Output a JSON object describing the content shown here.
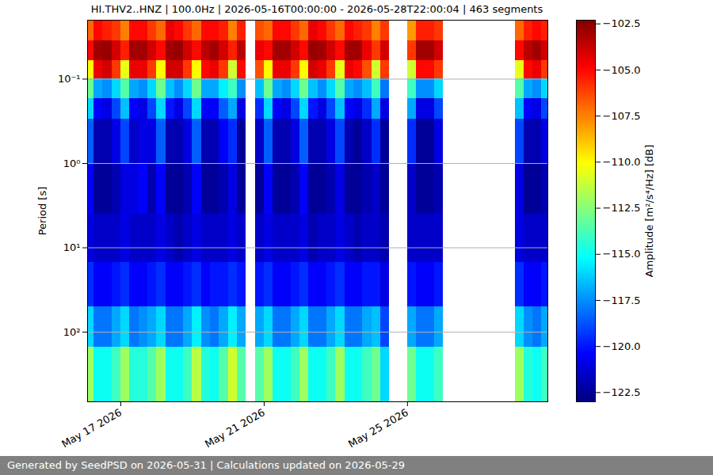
{
  "chart_data": {
    "type": "heatmap",
    "title": "HI.THV2..HNZ | 100.0Hz | 2026-05-16T00:00:00 - 2026-05-28T22:00:04 | 463 segments",
    "footer": "Generated by SeedPSD on 2026-05-31 | Calculations updated on 2026-05-29",
    "y_label": "Period [s]",
    "log": "y",
    "grid": true,
    "xlim": [
      "2026-05-16T01:43:00",
      "2026-05-28T22:00:04"
    ],
    "xticks": [
      {
        "value": "2026-05-17T00:00:00",
        "label": "May 17 2026"
      },
      {
        "value": "2026-05-21T00:00:00",
        "label": "May 21 2026"
      },
      {
        "value": "2026-05-25T00:00:00",
        "label": "May 25 2026"
      }
    ],
    "ylim": [
      0.02,
      670
    ],
    "yticks": [
      {
        "value": 0.1,
        "label": "10⁻¹"
      },
      {
        "value": 1,
        "label": "10⁰"
      },
      {
        "value": 10,
        "label": "10¹"
      },
      {
        "value": 100,
        "label": "10²"
      }
    ],
    "x_bins": [
      "2026-05-16T00:00:00",
      "2026-05-16T06:00:00",
      "2026-05-16T12:00:00",
      "2026-05-16T18:00:00",
      "2026-05-17T00:00:00",
      "2026-05-17T06:00:00",
      "2026-05-17T12:00:00",
      "2026-05-17T18:00:00",
      "2026-05-18T00:00:00",
      "2026-05-18T06:00:00",
      "2026-05-18T12:00:00",
      "2026-05-18T18:00:00",
      "2026-05-19T00:00:00",
      "2026-05-19T06:00:00",
      "2026-05-19T12:00:00",
      "2026-05-19T18:00:00",
      "2026-05-20T00:00:00",
      "2026-05-20T06:00:00",
      "2026-05-20T12:00:00",
      "2026-05-20T18:00:00",
      "2026-05-21T00:00:00",
      "2026-05-21T06:00:00",
      "2026-05-21T12:00:00",
      "2026-05-21T18:00:00",
      "2026-05-22T00:00:00",
      "2026-05-22T06:00:00",
      "2026-05-22T12:00:00",
      "2026-05-22T18:00:00",
      "2026-05-23T00:00:00",
      "2026-05-23T06:00:00",
      "2026-05-23T12:00:00",
      "2026-05-23T18:00:00",
      "2026-05-24T00:00:00",
      "2026-05-24T06:00:00",
      "2026-05-24T12:00:00",
      "2026-05-24T18:00:00",
      "2026-05-25T00:00:00",
      "2026-05-25T06:00:00",
      "2026-05-25T12:00:00",
      "2026-05-25T18:00:00",
      "2026-05-26T00:00:00",
      "2026-05-26T06:00:00",
      "2026-05-26T12:00:00",
      "2026-05-26T18:00:00",
      "2026-05-27T00:00:00",
      "2026-05-27T06:00:00",
      "2026-05-27T12:00:00",
      "2026-05-27T18:00:00",
      "2026-05-28T00:00:00",
      "2026-05-28T06:00:00",
      "2026-05-28T12:00:00",
      "2026-05-28T18:00:00",
      "2026-05-29T00:00:00"
    ],
    "y_bins": [
      0.02,
      0.035,
      0.06,
      0.1,
      0.17,
      0.3,
      1,
      4,
      15,
      50,
      150,
      670
    ],
    "values": [
      [
        -107,
        -105,
        -105.5,
        -106,
        -107.5,
        -105,
        -105,
        -106,
        -107,
        -104.5,
        -105,
        -106,
        -107,
        -105,
        -105,
        -105.5,
        -107.5,
        -105.5,
        null,
        -106.5,
        -107,
        -105,
        -105,
        -106,
        -107,
        -104.5,
        -105,
        -106,
        -107,
        -105,
        -105.5,
        -106,
        -107.5,
        -106,
        null,
        null,
        -108,
        -105.5,
        -105.5,
        -106,
        null,
        null,
        null,
        null,
        null,
        null,
        null,
        null,
        -107,
        -105.5,
        -105,
        -105.5
      ],
      [
        -105,
        -103,
        -102.8,
        -104,
        -105.5,
        -103,
        -103,
        -104,
        -105,
        -103,
        -102.8,
        -104,
        -105,
        -103.5,
        -103,
        -104,
        -105.5,
        -103.5,
        null,
        -104.5,
        -105,
        -103,
        -103,
        -104,
        -105,
        -102.8,
        -103,
        -104,
        -105,
        -103,
        -103,
        -104.5,
        -106,
        -104,
        null,
        null,
        -106,
        -103,
        -103,
        -104,
        null,
        null,
        null,
        null,
        null,
        null,
        null,
        null,
        -105,
        -103.5,
        -103,
        -104
      ],
      [
        -110,
        -104.5,
        -104,
        -106,
        -110.5,
        -104.5,
        -104.5,
        -106,
        -110,
        -104,
        -104,
        -106,
        -110,
        -105,
        -104.5,
        -106,
        -111,
        -105,
        null,
        -106.5,
        -110,
        -104.5,
        -104.5,
        -106,
        -110,
        -104,
        -104.5,
        -106,
        -110.5,
        -104.5,
        -105,
        -106.5,
        -111,
        -106,
        null,
        null,
        -111,
        -105,
        -105,
        -106,
        null,
        null,
        null,
        null,
        null,
        null,
        null,
        null,
        -110.5,
        -105,
        -104.5,
        -106
      ],
      [
        -113,
        -117,
        -117.5,
        -116,
        -113.5,
        -117,
        -117.5,
        -116,
        -113,
        -116.5,
        -117.5,
        -116,
        -113,
        -117,
        -117,
        -115.5,
        -114,
        -117.5,
        null,
        -116.5,
        -113,
        -117,
        -117.5,
        -116,
        -113,
        -116.5,
        -117.5,
        -116,
        -113.5,
        -117,
        -117.5,
        -116.5,
        -114,
        -118,
        null,
        null,
        -114,
        -117.5,
        -117.5,
        -116,
        null,
        null,
        null,
        null,
        null,
        null,
        null,
        null,
        -113.5,
        -117,
        -117.5,
        -116
      ],
      [
        -116,
        -120.5,
        -121,
        -119,
        -116.5,
        -120.5,
        -121,
        -119,
        -116,
        -120,
        -121,
        -119,
        -116,
        -120.5,
        -120.5,
        -118.5,
        -117,
        -121,
        null,
        -119.5,
        -116,
        -120.5,
        -121,
        -119,
        -116,
        -120,
        -121,
        -119,
        -116.5,
        -120.5,
        -121,
        -119.5,
        -117,
        -121,
        null,
        null,
        -117,
        -121,
        -121,
        -119,
        null,
        null,
        null,
        null,
        null,
        null,
        null,
        null,
        -116.5,
        -120.5,
        -121,
        -119
      ],
      [
        -118.5,
        -122,
        -122,
        -121,
        -119,
        -121.5,
        -121,
        -121,
        -118.5,
        -122,
        -122,
        -121,
        -118.5,
        -122,
        -122,
        -120.5,
        -119.5,
        -122.5,
        null,
        -121.5,
        -118.5,
        -122,
        -122,
        -121,
        -118.5,
        -122,
        -122,
        -121,
        -119,
        -122,
        -122.5,
        -121.5,
        -119.5,
        -122.5,
        null,
        null,
        -119.5,
        -122.5,
        -122.5,
        -121,
        null,
        null,
        null,
        null,
        null,
        null,
        null,
        null,
        -119,
        -122,
        -122,
        -121
      ],
      [
        -120.5,
        -122.5,
        -122.5,
        -122,
        -121,
        -121,
        -120.5,
        -122,
        -120.5,
        -122.5,
        -122.5,
        -122,
        -120.5,
        -122.5,
        -122.5,
        -122,
        -121,
        -122.5,
        null,
        -122.5,
        -120.5,
        -122.5,
        -122.5,
        -122,
        -120.5,
        -122.5,
        -122.5,
        -122,
        -121,
        -122.5,
        -122.5,
        -122,
        -121.5,
        -122.5,
        null,
        null,
        -121.5,
        -122.5,
        -122.5,
        -122,
        null,
        null,
        null,
        null,
        null,
        null,
        null,
        null,
        -121,
        -122.5,
        -122.5,
        -122
      ],
      [
        -121,
        -121.5,
        -121.5,
        -121.5,
        -121,
        -121.5,
        -121.5,
        -121.5,
        -121,
        -121.5,
        -122,
        -121.5,
        -121,
        -121.5,
        -121.5,
        -121.5,
        -121,
        -121.5,
        null,
        -121.5,
        -121,
        -121.5,
        -121.5,
        -121.5,
        -121,
        -122,
        -121.5,
        -121.5,
        -121,
        -121.5,
        -122,
        -121.5,
        -121.5,
        -122,
        null,
        null,
        -121.5,
        -121.5,
        -121.5,
        -121.5,
        null,
        null,
        null,
        null,
        null,
        null,
        null,
        null,
        -121,
        -121.5,
        -121.5,
        -121.5
      ],
      [
        -119.5,
        -120.5,
        -120.5,
        -120,
        -119.5,
        -120.5,
        -120.5,
        -120,
        -119.5,
        -120.5,
        -120.5,
        -120,
        -119.5,
        -120.5,
        -120,
        -120,
        -119.5,
        -120,
        null,
        -120,
        -119.5,
        -120.5,
        -120.5,
        -120,
        -119.5,
        -120.5,
        -120.5,
        -120,
        -119.5,
        -120.5,
        -120.5,
        -120,
        -120,
        -121,
        null,
        null,
        -120,
        -120.5,
        -120.5,
        -120,
        null,
        null,
        null,
        null,
        null,
        null,
        null,
        null,
        -119.5,
        -120.5,
        -120.5,
        -120
      ],
      [
        -116,
        -118,
        -118,
        -117,
        -116,
        -118,
        -117.5,
        -117,
        -116,
        -118,
        -118,
        -117,
        -115.5,
        -117.5,
        -118,
        -117,
        -115.5,
        -117,
        null,
        -117,
        -116,
        -118,
        -118,
        -117,
        -116,
        -118,
        -118,
        -117,
        -116,
        -118,
        -118,
        -117,
        -116.5,
        -119,
        null,
        null,
        -117,
        -118,
        -118,
        -117,
        null,
        null,
        null,
        null,
        null,
        null,
        null,
        null,
        -116,
        -117.5,
        -118,
        -117
      ],
      [
        -112,
        -115,
        -115,
        -114,
        -112,
        -114.5,
        -114.5,
        -113.5,
        -112,
        -115,
        -115,
        -114,
        -111.5,
        -114.5,
        -115,
        -113.5,
        -111,
        -113.5,
        null,
        -113.5,
        -112,
        -115,
        -115,
        -114,
        -112,
        -115,
        -115,
        -114,
        -112,
        -115,
        -115,
        -114,
        -113,
        -116,
        null,
        null,
        -113,
        -115,
        -115,
        -114,
        null,
        null,
        null,
        null,
        null,
        null,
        null,
        null,
        -112,
        -114.5,
        -115,
        -114
      ]
    ],
    "colorbar": {
      "label": "Amplitude [m²/s⁴/Hz] [dB]",
      "lim": [
        -123,
        -102.3
      ],
      "ticks": [
        {
          "value": -102.5,
          "label": "−102.5"
        },
        {
          "value": -105,
          "label": "−105.0"
        },
        {
          "value": -107.5,
          "label": "−107.5"
        },
        {
          "value": -110,
          "label": "−110.0"
        },
        {
          "value": -112.5,
          "label": "−112.5"
        },
        {
          "value": -115,
          "label": "−115.0"
        },
        {
          "value": -117.5,
          "label": "−117.5"
        },
        {
          "value": -120,
          "label": "−120.0"
        },
        {
          "value": -122.5,
          "label": "−122.5"
        }
      ]
    }
  }
}
